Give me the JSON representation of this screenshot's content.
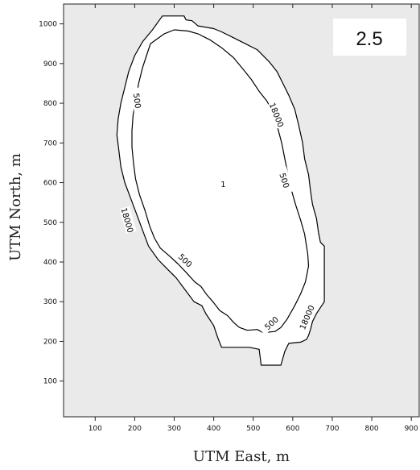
{
  "panel_label": "2.5",
  "chart_data": {
    "type": "contour",
    "xlabel": "UTM East, m",
    "ylabel": "UTM North, m",
    "xlim": [
      20,
      920
    ],
    "ylim": [
      10,
      1050
    ],
    "x_ticks": [
      100,
      200,
      300,
      400,
      500,
      600,
      700,
      800,
      900
    ],
    "y_ticks": [
      100,
      200,
      300,
      400,
      500,
      600,
      700,
      800,
      900,
      1000
    ],
    "grid": false,
    "legend": "none",
    "colors": {
      "plot_background": "#eaeaea",
      "contour_fill": "#ffffff",
      "contour_line": "#000000"
    },
    "contours": [
      {
        "level": "18000",
        "points": [
          [
            270,
            1020
          ],
          [
            325,
            1020
          ],
          [
            330,
            1010
          ],
          [
            345,
            1008
          ],
          [
            360,
            995
          ],
          [
            400,
            988
          ],
          [
            420,
            980
          ],
          [
            450,
            965
          ],
          [
            480,
            950
          ],
          [
            510,
            935
          ],
          [
            540,
            905
          ],
          [
            560,
            880
          ],
          [
            575,
            850
          ],
          [
            590,
            820
          ],
          [
            605,
            785
          ],
          [
            615,
            745
          ],
          [
            625,
            700
          ],
          [
            630,
            660
          ],
          [
            640,
            620
          ],
          [
            645,
            580
          ],
          [
            650,
            545
          ],
          [
            660,
            510
          ],
          [
            665,
            475
          ],
          [
            670,
            450
          ],
          [
            680,
            440
          ],
          [
            680,
            300
          ],
          [
            670,
            285
          ],
          [
            660,
            270
          ],
          [
            650,
            250
          ],
          [
            645,
            230
          ],
          [
            640,
            215
          ],
          [
            635,
            205
          ],
          [
            620,
            198
          ],
          [
            590,
            195
          ],
          [
            580,
            175
          ],
          [
            570,
            140
          ],
          [
            520,
            140
          ],
          [
            515,
            180
          ],
          [
            490,
            185
          ],
          [
            420,
            185
          ],
          [
            410,
            210
          ],
          [
            400,
            240
          ],
          [
            380,
            270
          ],
          [
            370,
            290
          ],
          [
            350,
            300
          ],
          [
            335,
            320
          ],
          [
            320,
            340
          ],
          [
            305,
            360
          ],
          [
            285,
            380
          ],
          [
            260,
            405
          ],
          [
            235,
            440
          ],
          [
            220,
            480
          ],
          [
            205,
            520
          ],
          [
            190,
            560
          ],
          [
            175,
            600
          ],
          [
            165,
            640
          ],
          [
            160,
            680
          ],
          [
            155,
            720
          ],
          [
            158,
            760
          ],
          [
            165,
            800
          ],
          [
            175,
            840
          ],
          [
            185,
            880
          ],
          [
            200,
            920
          ],
          [
            220,
            955
          ],
          [
            245,
            985
          ],
          [
            270,
            1020
          ]
        ]
      },
      {
        "level": "500",
        "points": [
          [
            240,
            950
          ],
          [
            275,
            975
          ],
          [
            300,
            985
          ],
          [
            335,
            982
          ],
          [
            360,
            975
          ],
          [
            390,
            960
          ],
          [
            420,
            940
          ],
          [
            450,
            915
          ],
          [
            475,
            885
          ],
          [
            495,
            860
          ],
          [
            515,
            830
          ],
          [
            535,
            805
          ],
          [
            548,
            780
          ],
          [
            560,
            745
          ],
          [
            572,
            700
          ],
          [
            580,
            660
          ],
          [
            588,
            620
          ],
          [
            597,
            580
          ],
          [
            607,
            545
          ],
          [
            620,
            505
          ],
          [
            630,
            470
          ],
          [
            638,
            420
          ],
          [
            640,
            390
          ],
          [
            632,
            350
          ],
          [
            620,
            320
          ],
          [
            605,
            290
          ],
          [
            585,
            255
          ],
          [
            570,
            235
          ],
          [
            555,
            225
          ],
          [
            525,
            222
          ],
          [
            510,
            230
          ],
          [
            485,
            228
          ],
          [
            465,
            235
          ],
          [
            450,
            248
          ],
          [
            435,
            265
          ],
          [
            415,
            278
          ],
          [
            398,
            300
          ],
          [
            382,
            318
          ],
          [
            368,
            338
          ],
          [
            352,
            350
          ],
          [
            332,
            372
          ],
          [
            310,
            395
          ],
          [
            288,
            415
          ],
          [
            265,
            435
          ],
          [
            250,
            460
          ],
          [
            238,
            490
          ],
          [
            226,
            530
          ],
          [
            212,
            570
          ],
          [
            202,
            610
          ],
          [
            197,
            650
          ],
          [
            193,
            690
          ],
          [
            193,
            730
          ],
          [
            196,
            770
          ],
          [
            203,
            810
          ],
          [
            210,
            850
          ],
          [
            220,
            890
          ],
          [
            230,
            920
          ],
          [
            240,
            950
          ]
        ]
      }
    ],
    "labels": [
      {
        "text": "500",
        "x": 205,
        "y": 806,
        "angle": 82
      },
      {
        "text": "18000",
        "x": 558,
        "y": 770,
        "angle": 68
      },
      {
        "text": "500",
        "x": 578,
        "y": 605,
        "angle": 72
      },
      {
        "text": "1",
        "x": 424,
        "y": 595,
        "angle": 0
      },
      {
        "text": "18000",
        "x": 180,
        "y": 505,
        "angle": 74
      },
      {
        "text": "500",
        "x": 327,
        "y": 403,
        "angle": 44
      },
      {
        "text": "500",
        "x": 547,
        "y": 245,
        "angle": -42
      },
      {
        "text": "18000",
        "x": 637,
        "y": 260,
        "angle": -67
      }
    ]
  }
}
